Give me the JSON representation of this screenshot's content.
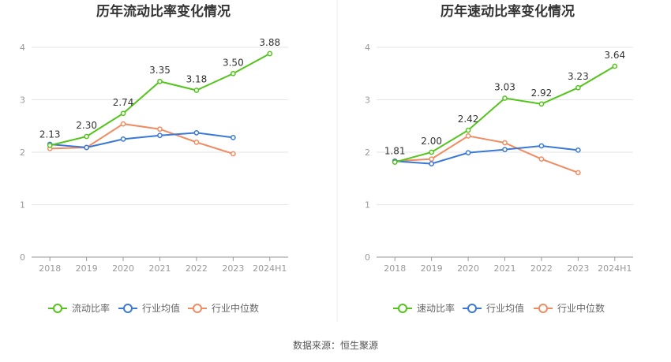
{
  "chart_data": [
    {
      "type": "line",
      "title": "历年流动比率变化情况",
      "categories": [
        "2018",
        "2019",
        "2020",
        "2021",
        "2022",
        "2023",
        "2024H1"
      ],
      "ylim": [
        0,
        4
      ],
      "yticks": [
        "0",
        "1",
        "2",
        "3",
        "4"
      ],
      "grid": true,
      "legend_position": "bottom",
      "series": [
        {
          "name": "流动比率",
          "color": "#52c41a",
          "values": [
            2.13,
            2.3,
            2.74,
            3.35,
            3.18,
            3.5,
            3.88
          ],
          "labels": [
            "2.13",
            "2.30",
            "2.74",
            "3.35",
            "3.18",
            "3.50",
            "3.88"
          ]
        },
        {
          "name": "行业均值",
          "color": "#3a78d8",
          "values": [
            2.15,
            2.09,
            2.25,
            2.32,
            2.37,
            2.28,
            null
          ]
        },
        {
          "name": "行业中位数",
          "color": "#f08c62",
          "values": [
            2.07,
            2.09,
            2.54,
            2.44,
            2.19,
            1.97,
            null
          ]
        }
      ]
    },
    {
      "type": "line",
      "title": "历年速动比率变化情况",
      "categories": [
        "2018",
        "2019",
        "2020",
        "2021",
        "2022",
        "2023",
        "2024H1"
      ],
      "ylim": [
        0,
        4
      ],
      "yticks": [
        "0",
        "1",
        "2",
        "3",
        "4"
      ],
      "grid": true,
      "legend_position": "bottom",
      "series": [
        {
          "name": "速动比率",
          "color": "#52c41a",
          "values": [
            1.81,
            2.0,
            2.42,
            3.03,
            2.92,
            3.23,
            3.64
          ],
          "labels": [
            "1.81",
            "2.00",
            "2.42",
            "3.03",
            "2.92",
            "3.23",
            "3.64"
          ]
        },
        {
          "name": "行业均值",
          "color": "#3a78d8",
          "values": [
            1.83,
            1.78,
            1.99,
            2.05,
            2.12,
            2.04,
            null
          ]
        },
        {
          "name": "行业中位数",
          "color": "#f08c62",
          "values": [
            1.83,
            1.87,
            2.31,
            2.18,
            1.87,
            1.61,
            null
          ]
        }
      ]
    }
  ],
  "footer": "数据来源：恒生聚源"
}
